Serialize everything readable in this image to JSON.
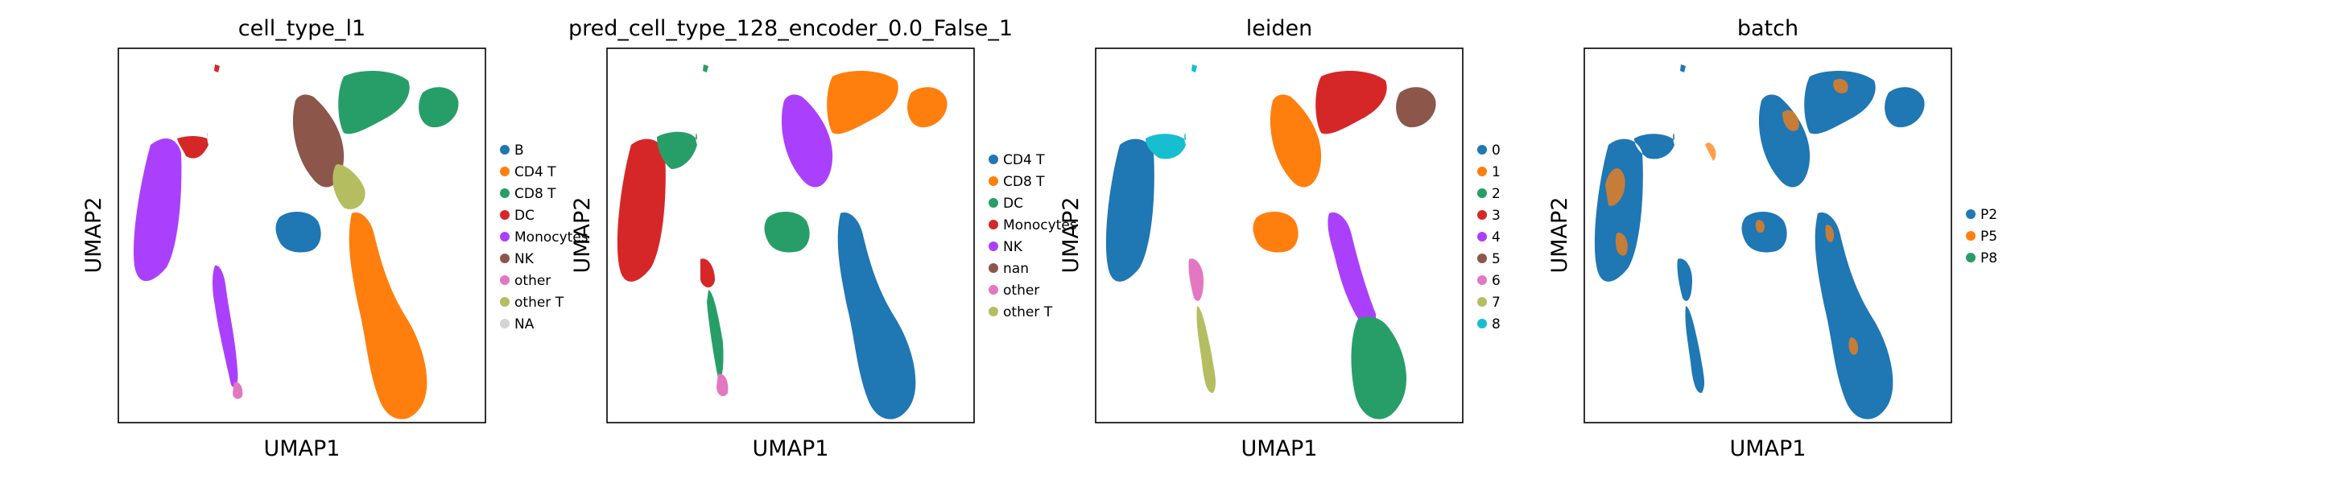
{
  "chart_data": [
    {
      "type": "scatter",
      "title": "cell_type_l1",
      "xlabel": "UMAP1",
      "ylabel": "UMAP2",
      "grid": false,
      "legend_position": "right",
      "legend": [
        {
          "label": "B",
          "color": "#1f77b4"
        },
        {
          "label": "CD4 T",
          "color": "#ff7f0e"
        },
        {
          "label": "CD8 T",
          "color": "#279e68"
        },
        {
          "label": "DC",
          "color": "#d62728"
        },
        {
          "label": "Monocytes",
          "color": "#aa40fc"
        },
        {
          "label": "NK",
          "color": "#8c564b"
        },
        {
          "label": "other",
          "color": "#e377c2"
        },
        {
          "label": "other T",
          "color": "#b5bd61"
        },
        {
          "label": "NA",
          "color": "#d3d3d3"
        }
      ],
      "clusters": [
        {
          "label": "Monocytes",
          "color": "#aa40fc"
        },
        {
          "label": "DC",
          "color": "#d62728"
        },
        {
          "label": "NK",
          "color": "#8c564b"
        },
        {
          "label": "CD8 T",
          "color": "#279e68"
        },
        {
          "label": "other T",
          "color": "#b5bd61"
        },
        {
          "label": "B",
          "color": "#1f77b4"
        },
        {
          "label": "CD4 T",
          "color": "#ff7f0e"
        },
        {
          "label": "other",
          "color": "#e377c2"
        }
      ]
    },
    {
      "type": "scatter",
      "title": "pred_cell_type_128_encoder_0.0_False_1",
      "xlabel": "UMAP1",
      "ylabel": "UMAP2",
      "grid": false,
      "legend_position": "right",
      "legend": [
        {
          "label": "CD4 T",
          "color": "#1f77b4"
        },
        {
          "label": "CD8 T",
          "color": "#ff7f0e"
        },
        {
          "label": "DC",
          "color": "#279e68"
        },
        {
          "label": "Monocytes",
          "color": "#d62728"
        },
        {
          "label": "NK",
          "color": "#aa40fc"
        },
        {
          "label": "nan",
          "color": "#8c564b"
        },
        {
          "label": "other",
          "color": "#e377c2"
        },
        {
          "label": "other T",
          "color": "#b5bd61"
        }
      ],
      "clusters": [
        {
          "label": "Monocytes",
          "color": "#d62728"
        },
        {
          "label": "DC",
          "color": "#279e68"
        },
        {
          "label": "NK",
          "color": "#aa40fc"
        },
        {
          "label": "CD4 T",
          "color": "#1f77b4"
        },
        {
          "label": "CD8 T",
          "color": "#ff7f0e"
        },
        {
          "label": "other",
          "color": "#e377c2"
        }
      ]
    },
    {
      "type": "scatter",
      "title": "leiden",
      "xlabel": "UMAP1",
      "ylabel": "UMAP2",
      "grid": false,
      "legend_position": "right",
      "legend": [
        {
          "label": "0",
          "color": "#1f77b4"
        },
        {
          "label": "1",
          "color": "#ff7f0e"
        },
        {
          "label": "2",
          "color": "#279e68"
        },
        {
          "label": "3",
          "color": "#d62728"
        },
        {
          "label": "4",
          "color": "#aa40fc"
        },
        {
          "label": "5",
          "color": "#8c564b"
        },
        {
          "label": "6",
          "color": "#e377c2"
        },
        {
          "label": "7",
          "color": "#b5bd61"
        },
        {
          "label": "8",
          "color": "#17becf"
        }
      ],
      "clusters": [
        {
          "label": "0",
          "color": "#1f77b4"
        },
        {
          "label": "8",
          "color": "#17becf"
        },
        {
          "label": "1",
          "color": "#ff7f0e"
        },
        {
          "label": "3",
          "color": "#d62728"
        },
        {
          "label": "5",
          "color": "#8c564b"
        },
        {
          "label": "4",
          "color": "#aa40fc"
        },
        {
          "label": "2",
          "color": "#279e68"
        },
        {
          "label": "6",
          "color": "#e377c2"
        },
        {
          "label": "7",
          "color": "#b5bd61"
        }
      ]
    },
    {
      "type": "scatter",
      "title": "batch",
      "xlabel": "UMAP1",
      "ylabel": "UMAP2",
      "grid": false,
      "legend_position": "right",
      "legend": [
        {
          "label": "P2",
          "color": "#1f77b4"
        },
        {
          "label": "P5",
          "color": "#ff7f0e"
        },
        {
          "label": "P8",
          "color": "#279e68"
        }
      ],
      "clusters": [
        {
          "label": "P2",
          "color": "#1f77b4"
        },
        {
          "label": "P5",
          "color": "#ff7f0e"
        }
      ]
    }
  ]
}
